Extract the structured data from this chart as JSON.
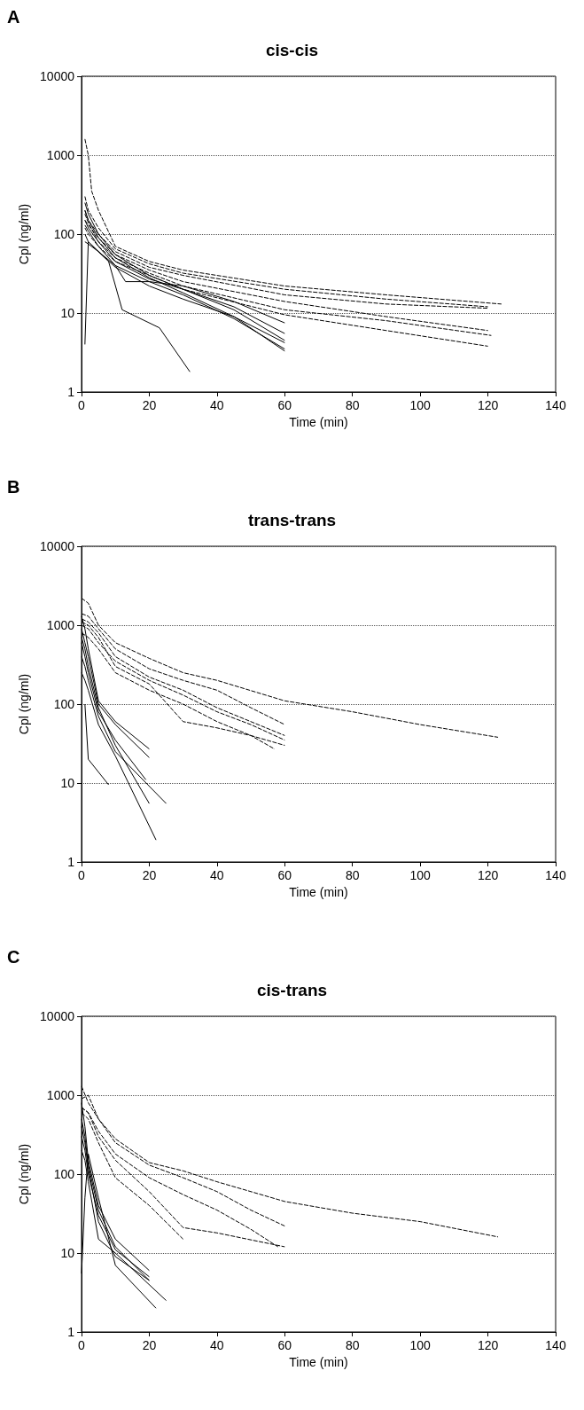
{
  "chart_data": [
    {
      "type": "line",
      "title": "cis-cis",
      "xlabel": "Time (min)",
      "ylabel": "Cpl (ng/ml)",
      "annotations": [
        "A"
      ],
      "xlim": [
        0,
        140
      ],
      "xticks": [
        0,
        20,
        40,
        60,
        80,
        100,
        120,
        140
      ],
      "ylim": [
        1,
        10000
      ],
      "yticks": [
        1,
        10,
        100,
        1000,
        10000
      ],
      "log": "y",
      "grid": "y",
      "marker": "none",
      "series": [
        {
          "color": "#000000",
          "line_style": "solid",
          "x": [
            1,
            2,
            8,
            12,
            23,
            32
          ],
          "values": [
            4,
            80,
            45,
            11,
            6.5,
            1.8
          ]
        },
        {
          "color": "#000000",
          "line_style": "solid",
          "x": [
            1,
            2,
            5,
            10,
            20,
            30,
            45,
            60
          ],
          "values": [
            200,
            150,
            90,
            50,
            28,
            18,
            9,
            3.3
          ]
        },
        {
          "color": "#000000",
          "line_style": "solid",
          "x": [
            1,
            2,
            5,
            10,
            20,
            30,
            45,
            60
          ],
          "values": [
            130,
            110,
            70,
            40,
            25,
            17,
            8.5,
            3.5
          ]
        },
        {
          "color": "#000000",
          "line_style": "solid",
          "x": [
            1,
            2,
            5,
            10,
            20,
            30,
            45,
            60
          ],
          "values": [
            100,
            80,
            60,
            38,
            22,
            15,
            9,
            4.2
          ]
        },
        {
          "color": "#000000",
          "line_style": "solid",
          "x": [
            1,
            2,
            5,
            10,
            20,
            30,
            45,
            60
          ],
          "values": [
            250,
            180,
            100,
            55,
            30,
            20,
            11,
            4.5
          ]
        },
        {
          "color": "#000000",
          "line_style": "solid",
          "x": [
            1,
            2,
            5,
            10,
            20,
            30,
            45,
            60
          ],
          "values": [
            150,
            120,
            80,
            45,
            27,
            20,
            12,
            5.5
          ]
        },
        {
          "color": "#000000",
          "line_style": "solid",
          "x": [
            1,
            2,
            5,
            10,
            13,
            20,
            30,
            45,
            60
          ],
          "values": [
            80,
            75,
            60,
            40,
            25,
            25,
            22,
            14,
            7.5
          ]
        },
        {
          "color": "#000000",
          "line_style": "dashed",
          "x": [
            1,
            2,
            3,
            5,
            10,
            20,
            30,
            60,
            90,
            124
          ],
          "values": [
            1600,
            1000,
            350,
            200,
            70,
            45,
            35,
            22,
            17,
            13
          ]
        },
        {
          "color": "#000000",
          "line_style": "dashed",
          "x": [
            1,
            2,
            5,
            10,
            20,
            30,
            60,
            90,
            120
          ],
          "values": [
            300,
            200,
            120,
            65,
            42,
            32,
            20,
            15,
            12
          ]
        },
        {
          "color": "#000000",
          "line_style": "dashed",
          "x": [
            1,
            2,
            5,
            10,
            20,
            30,
            60,
            90,
            120
          ],
          "values": [
            200,
            150,
            100,
            60,
            38,
            30,
            17,
            13,
            11.5
          ]
        },
        {
          "color": "#000000",
          "line_style": "dashed",
          "x": [
            1,
            2,
            5,
            10,
            20,
            30,
            60,
            90,
            120
          ],
          "values": [
            150,
            130,
            90,
            55,
            35,
            25,
            14,
            9,
            6
          ]
        },
        {
          "color": "#000000",
          "line_style": "dashed",
          "x": [
            1,
            2,
            5,
            10,
            20,
            30,
            60,
            90,
            121
          ],
          "values": [
            180,
            140,
            80,
            50,
            32,
            22,
            11,
            8,
            5.2
          ]
        },
        {
          "color": "#000000",
          "line_style": "dashed",
          "x": [
            1,
            2,
            5,
            10,
            20,
            30,
            60,
            90,
            120
          ],
          "values": [
            120,
            100,
            70,
            45,
            30,
            20,
            9.5,
            6,
            3.8
          ]
        }
      ]
    },
    {
      "type": "line",
      "title": "trans-trans",
      "xlabel": "Time (min)",
      "ylabel": "Cpl (ng/ml)",
      "annotations": [
        "B"
      ],
      "xlim": [
        0,
        140
      ],
      "xticks": [
        0,
        20,
        40,
        60,
        80,
        100,
        120,
        140
      ],
      "ylim": [
        1,
        10000
      ],
      "yticks": [
        1,
        10,
        100,
        1000,
        10000
      ],
      "log": "y",
      "grid": "y",
      "marker": "none",
      "series": [
        {
          "color": "#000000",
          "line_style": "solid",
          "x": [
            1,
            2,
            8
          ],
          "values": [
            100,
            20,
            9.5
          ]
        },
        {
          "color": "#000000",
          "line_style": "solid",
          "x": [
            0,
            1,
            2,
            5,
            10,
            20
          ],
          "values": [
            1300,
            900,
            500,
            110,
            60,
            27
          ]
        },
        {
          "color": "#000000",
          "line_style": "solid",
          "x": [
            0,
            1,
            2,
            5,
            10,
            20
          ],
          "values": [
            900,
            600,
            400,
            100,
            55,
            21
          ]
        },
        {
          "color": "#000000",
          "line_style": "solid",
          "x": [
            0,
            1,
            2,
            5,
            10,
            19
          ],
          "values": [
            600,
            400,
            250,
            80,
            35,
            11
          ]
        },
        {
          "color": "#000000",
          "line_style": "solid",
          "x": [
            0,
            1,
            2,
            5,
            10,
            25
          ],
          "values": [
            400,
            300,
            200,
            70,
            25,
            5.5
          ]
        },
        {
          "color": "#000000",
          "line_style": "solid",
          "x": [
            0,
            1,
            2,
            5,
            10,
            22
          ],
          "values": [
            250,
            200,
            150,
            55,
            22,
            1.9
          ]
        },
        {
          "color": "#000000",
          "line_style": "solid",
          "x": [
            0,
            1,
            2,
            5,
            10,
            20
          ],
          "values": [
            700,
            500,
            300,
            90,
            30,
            5.5
          ]
        },
        {
          "color": "#000000",
          "line_style": "dashed",
          "x": [
            0,
            2,
            5,
            10,
            20,
            30,
            40,
            60,
            80,
            100,
            123
          ],
          "values": [
            2200,
            1900,
            1000,
            600,
            380,
            250,
            200,
            110,
            80,
            55,
            38
          ]
        },
        {
          "color": "#000000",
          "line_style": "dashed",
          "x": [
            0,
            2,
            5,
            10,
            20,
            30,
            40,
            50,
            60
          ],
          "values": [
            1400,
            1300,
            900,
            500,
            280,
            200,
            150,
            90,
            55
          ]
        },
        {
          "color": "#000000",
          "line_style": "dashed",
          "x": [
            0,
            2,
            5,
            10,
            20,
            30,
            40,
            50,
            60
          ],
          "values": [
            1200,
            1100,
            800,
            400,
            220,
            150,
            90,
            60,
            40
          ]
        },
        {
          "color": "#000000",
          "line_style": "dashed",
          "x": [
            0,
            2,
            5,
            10,
            20,
            30,
            40,
            50,
            60
          ],
          "values": [
            1000,
            900,
            600,
            350,
            200,
            130,
            80,
            55,
            35
          ]
        },
        {
          "color": "#000000",
          "line_style": "dashed",
          "x": [
            0,
            2,
            5,
            10,
            20,
            30,
            40,
            50,
            57
          ],
          "values": [
            1100,
            1000,
            700,
            300,
            180,
            60,
            50,
            40,
            27
          ]
        },
        {
          "color": "#000000",
          "line_style": "dashed",
          "x": [
            0,
            2,
            5,
            10,
            20,
            30,
            40,
            50,
            60
          ],
          "values": [
            800,
            700,
            500,
            250,
            150,
            100,
            60,
            40,
            30
          ]
        }
      ]
    },
    {
      "type": "line",
      "title": "cis-trans",
      "xlabel": "Time (min)",
      "ylabel": "Cpl (ng/ml)",
      "annotations": [
        "C"
      ],
      "xlim": [
        0,
        140
      ],
      "xticks": [
        0,
        20,
        40,
        60,
        80,
        100,
        120,
        140
      ],
      "ylim": [
        1,
        10000
      ],
      "yticks": [
        1,
        10,
        100,
        1000,
        10000
      ],
      "log": "y",
      "grid": "y",
      "marker": "none",
      "series": [
        {
          "color": "#000000",
          "line_style": "solid",
          "x": [
            0,
            1,
            2,
            5,
            10,
            20
          ],
          "values": [
            800,
            400,
            150,
            40,
            15,
            6
          ]
        },
        {
          "color": "#000000",
          "line_style": "solid",
          "x": [
            0,
            1,
            2,
            5,
            10,
            20
          ],
          "values": [
            500,
            300,
            130,
            35,
            12,
            4.5
          ]
        },
        {
          "color": "#000000",
          "line_style": "solid",
          "x": [
            0,
            1,
            2,
            5,
            10,
            20
          ],
          "values": [
            300,
            200,
            100,
            30,
            11,
            5
          ]
        },
        {
          "color": "#000000",
          "line_style": "solid",
          "x": [
            0,
            1,
            2,
            5,
            10,
            25
          ],
          "values": [
            200,
            150,
            80,
            15,
            10,
            2.5
          ]
        },
        {
          "color": "#000000",
          "line_style": "solid",
          "x": [
            0,
            1,
            2,
            5,
            10,
            22
          ],
          "values": [
            5.5,
            50,
            180,
            50,
            7,
            2
          ]
        },
        {
          "color": "#000000",
          "line_style": "solid",
          "x": [
            0,
            1,
            2,
            5,
            10,
            20
          ],
          "values": [
            400,
            250,
            120,
            25,
            9,
            4.5
          ]
        },
        {
          "color": "#000000",
          "line_style": "dashed",
          "x": [
            0,
            2,
            5,
            10,
            20,
            30,
            40,
            60,
            80,
            100,
            123
          ],
          "values": [
            1300,
            800,
            500,
            280,
            140,
            110,
            80,
            45,
            32,
            25,
            16
          ]
        },
        {
          "color": "#000000",
          "line_style": "dashed",
          "x": [
            0,
            2,
            5,
            10,
            20,
            30,
            40,
            50,
            60
          ],
          "values": [
            900,
            1000,
            500,
            250,
            130,
            90,
            60,
            35,
            22
          ]
        },
        {
          "color": "#000000",
          "line_style": "dashed",
          "x": [
            0,
            2,
            5,
            10,
            20,
            30,
            40,
            50,
            58
          ],
          "values": [
            700,
            600,
            350,
            180,
            90,
            55,
            35,
            20,
            12
          ]
        },
        {
          "color": "#000000",
          "line_style": "dashed",
          "x": [
            0,
            2,
            5,
            10,
            20,
            30
          ],
          "values": [
            600,
            500,
            250,
            90,
            40,
            15
          ]
        },
        {
          "color": "#000000",
          "line_style": "dashed",
          "x": [
            0,
            2,
            5,
            10,
            20,
            30,
            40,
            60
          ],
          "values": [
            700,
            600,
            300,
            150,
            60,
            21,
            18,
            12
          ]
        }
      ]
    }
  ]
}
